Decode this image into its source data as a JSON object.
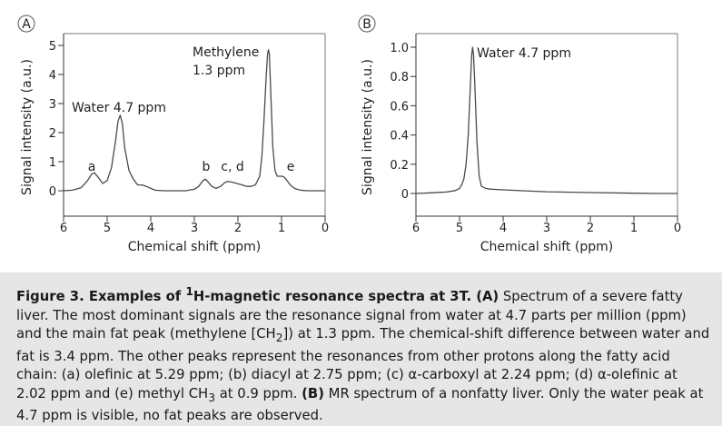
{
  "chart_data": [
    {
      "type": "line",
      "panel_label": "A",
      "xlabel": "Chemical shift (ppm)",
      "ylabel": "Signal intensity (a.u.)",
      "xlim": [
        6,
        0
      ],
      "ylim": [
        0,
        5
      ],
      "x_reversed": true,
      "xticks": [
        6,
        5,
        4,
        3,
        2,
        1,
        0
      ],
      "yticks": [
        0,
        1,
        2,
        3,
        4,
        5
      ],
      "series": [
        {
          "x": [
            6.0,
            5.8,
            5.6,
            5.45,
            5.35,
            5.29,
            5.2,
            5.1,
            5.0,
            4.9,
            4.8,
            4.75,
            4.7,
            4.65,
            4.6,
            4.5,
            4.4,
            4.3,
            4.2,
            4.1,
            4.0,
            3.9,
            3.7,
            3.5,
            3.2,
            3.0,
            2.9,
            2.8,
            2.75,
            2.7,
            2.6,
            2.5,
            2.4,
            2.3,
            2.24,
            2.15,
            2.1,
            2.02,
            1.9,
            1.8,
            1.7,
            1.6,
            1.5,
            1.45,
            1.4,
            1.35,
            1.32,
            1.3,
            1.28,
            1.25,
            1.2,
            1.15,
            1.1,
            1.05,
            1.0,
            0.95,
            0.9,
            0.85,
            0.8,
            0.7,
            0.6,
            0.5,
            0.4,
            0.2,
            0.0
          ],
          "y": [
            0.0,
            0.02,
            0.1,
            0.35,
            0.58,
            0.62,
            0.45,
            0.25,
            0.35,
            0.8,
            1.8,
            2.4,
            2.6,
            2.3,
            1.5,
            0.7,
            0.4,
            0.2,
            0.2,
            0.15,
            0.08,
            0.02,
            0.0,
            0.0,
            0.0,
            0.05,
            0.15,
            0.35,
            0.4,
            0.33,
            0.15,
            0.08,
            0.15,
            0.28,
            0.32,
            0.3,
            0.28,
            0.25,
            0.2,
            0.15,
            0.15,
            0.2,
            0.5,
            1.2,
            2.5,
            4.0,
            4.7,
            4.85,
            4.7,
            3.5,
            1.5,
            0.7,
            0.5,
            0.5,
            0.5,
            0.48,
            0.4,
            0.3,
            0.2,
            0.08,
            0.03,
            0.01,
            0.0,
            0.0,
            0.0
          ]
        }
      ],
      "annotations": [
        {
          "text": "Methylene",
          "x": 1.3,
          "y": 4.85
        },
        {
          "text": "1.3 ppm",
          "x": 1.3,
          "y": 4.85
        },
        {
          "text": "Water 4.7 ppm",
          "x": 4.7,
          "y": 2.6
        },
        {
          "text": "a",
          "x": 5.29,
          "y": 0.62
        },
        {
          "text": "b",
          "x": 2.75,
          "y": 0.4
        },
        {
          "text": "c, d",
          "x": 2.1,
          "y": 0.32
        },
        {
          "text": "e",
          "x": 0.9,
          "y": 0.5
        }
      ]
    },
    {
      "type": "line",
      "panel_label": "B",
      "xlabel": "Chemical shift (ppm)",
      "ylabel": "Signal intensity (a.u.)",
      "xlim": [
        6,
        0
      ],
      "ylim": [
        0,
        1.0
      ],
      "x_reversed": true,
      "xticks": [
        6,
        5,
        4,
        3,
        2,
        1,
        0
      ],
      "yticks": [
        "0",
        "0.2",
        "0.4",
        "0.6",
        "0.8",
        "1.0"
      ],
      "series": [
        {
          "x": [
            6.0,
            5.6,
            5.3,
            5.1,
            5.0,
            4.95,
            4.9,
            4.85,
            4.8,
            4.75,
            4.72,
            4.7,
            4.68,
            4.65,
            4.6,
            4.55,
            4.5,
            4.4,
            4.3,
            4.0,
            3.5,
            3.0,
            2.0,
            1.0,
            0.5,
            0.0
          ],
          "y": [
            0.0,
            0.005,
            0.01,
            0.02,
            0.035,
            0.06,
            0.1,
            0.2,
            0.4,
            0.75,
            0.95,
            1.0,
            0.95,
            0.75,
            0.35,
            0.12,
            0.05,
            0.035,
            0.03,
            0.025,
            0.018,
            0.012,
            0.006,
            0.002,
            0.0,
            0.0
          ]
        }
      ],
      "annotations": [
        {
          "text": "Water 4.7 ppm",
          "x": 4.7,
          "y": 1.0
        }
      ]
    }
  ],
  "caption": {
    "title_pre": "Figure 3. Examples of ",
    "title_sup": "1",
    "title_post": "H-magnetic resonance spectra at 3T. (A)",
    "t1": " Spectrum of a severe fatty liver. The most dominant signals are the resonance signal from water at 4.7 parts per million (ppm) and the main fat peak (methylene [CH",
    "sub1": "2",
    "t2": "]) at 1.3 ppm. The chemical-shift difference between water and fat is 3.4 ppm. The other peaks represent the resonances from other protons along the fatty acid chain: (a) olefinic at 5.29 ppm; (b) diacyl at 2.75 ppm; (c) α-carboxyl at 2.24 ppm; (d) α-olefinic at 2.02 ppm and (e) methyl CH",
    "sub2": "3",
    "t3": " at 0.9 ppm. ",
    "bold_b": "(B)",
    "t4": " MR spectrum of a nonfatty liver. Only the water peak at 4.7 ppm is visible, no fat peaks are observed."
  }
}
